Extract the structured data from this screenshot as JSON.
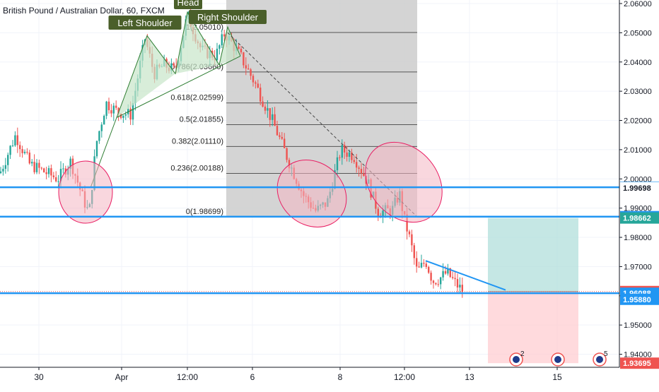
{
  "symbol": {
    "title": "British Pound / Australian Dollar, 60, FXCM"
  },
  "colors": {
    "up": "#26a69a",
    "down": "#ef5350",
    "blue_line": "#2196f3",
    "fib_zone": "#cccccc",
    "ellipse_fill": "#f4b6c2",
    "ellipse_stroke": "#e91e63",
    "triangle_fill": "#c8e6c9",
    "profit_zone": "#b2dfdb",
    "loss_zone": "#ffcdd2",
    "label_green": "#4a5f2a"
  },
  "chart_data": {
    "type": "candlestick",
    "title": "British Pound / Australian Dollar, 60, FXCM",
    "ylim": [
      1.9305,
      2.0612
    ],
    "y_ticks": [
      "2.06000",
      "2.05000",
      "2.04000",
      "2.03000",
      "2.02000",
      "2.01000",
      "2.00000",
      "1.99000",
      "1.98000",
      "1.97000",
      "1.96000",
      "1.95000",
      "1.94000"
    ],
    "x_ticks": [
      "30",
      "Apr",
      "12:00",
      "6",
      "8",
      "12:00",
      "13",
      "15"
    ],
    "price_labels": [
      {
        "value": "1.99713",
        "kind": "blue-line"
      },
      {
        "value": "1.99698",
        "kind": "plain"
      },
      {
        "value": "1.98709",
        "kind": "blue-line"
      },
      {
        "value": "1.98662",
        "kind": "profit"
      },
      {
        "value": "1.96146",
        "kind": "current"
      },
      {
        "value": "1.96088",
        "kind": "blue-line"
      },
      {
        "value": "1.95880",
        "kind": "blue-line"
      },
      {
        "value": "1.93695",
        "kind": "stop"
      }
    ],
    "horizontal_lines": [
      1.99713,
      1.98709,
      1.96088
    ],
    "current_price": 1.96146,
    "fibonacci": {
      "high": 2.0501,
      "low": 1.98699,
      "levels": [
        {
          "label": "1(2.05010)",
          "value": 2.0501
        },
        {
          "label": "0.786(2.03660)",
          "value": 2.0366
        },
        {
          "label": "0.618(2.02599)",
          "value": 2.02599
        },
        {
          "label": "0.5(2.01855)",
          "value": 2.01855
        },
        {
          "label": "0.382(2.01110)",
          "value": 2.0111
        },
        {
          "label": "0.236(2.00188)",
          "value": 2.00188
        },
        {
          "label": "0(1.98699)",
          "value": 1.98699
        }
      ]
    },
    "pattern_labels": [
      "Left Shoulder",
      "Head",
      "Right Shoulder"
    ],
    "event_badges": [
      {
        "count": "2"
      },
      {
        "count": ""
      },
      {
        "count": "5"
      }
    ],
    "trade": {
      "entry": 1.96146,
      "target": 1.98662,
      "stop": 1.93695
    }
  }
}
